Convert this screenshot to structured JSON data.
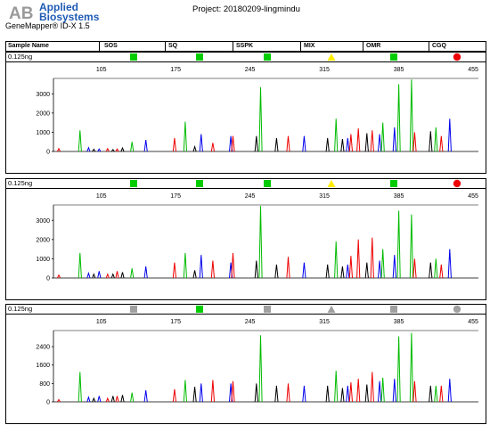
{
  "app": {
    "brand_line1": "Applied",
    "brand_line2": "Biosystems",
    "version": "GeneMapper® ID-X  1.5",
    "project": "Project: 20180209-lingmindu"
  },
  "header": {
    "sample_name": "Sample Name",
    "columns": [
      "SOS",
      "SQ",
      "SSPK",
      "MIX",
      "OMR",
      "CGQ"
    ]
  },
  "colors": {
    "blue": "#0000ee",
    "green": "#00bb00",
    "black": "#000000",
    "red": "#ee0000"
  },
  "panels": [
    {
      "sample_label": "0.125ng",
      "markers": [
        {
          "shape": "square",
          "color": "#00cc00"
        },
        {
          "shape": "square",
          "color": "#00cc00"
        },
        {
          "shape": "square",
          "color": "#00cc00"
        },
        {
          "shape": "triangle",
          "color": "#ffee00"
        },
        {
          "shape": "square",
          "color": "#00cc00"
        },
        {
          "shape": "circle",
          "color": "#ee0000"
        }
      ],
      "x_ticks": [
        "105",
        "175",
        "245",
        "315",
        "385",
        "455"
      ],
      "y_ticks": [
        "0",
        "1000",
        "2000",
        "3000"
      ],
      "ymax": 3800
    },
    {
      "sample_label": "0.125ng",
      "markers": [
        {
          "shape": "square",
          "color": "#00cc00"
        },
        {
          "shape": "square",
          "color": "#00cc00"
        },
        {
          "shape": "square",
          "color": "#00cc00"
        },
        {
          "shape": "triangle",
          "color": "#ffee00"
        },
        {
          "shape": "square",
          "color": "#00cc00"
        },
        {
          "shape": "circle",
          "color": "#ee0000"
        }
      ],
      "x_ticks": [
        "105",
        "175",
        "245",
        "315",
        "385",
        "455"
      ],
      "y_ticks": [
        "0",
        "1000",
        "2000",
        "3000"
      ],
      "ymax": 3800
    },
    {
      "sample_label": "0.125ng",
      "markers": [
        {
          "shape": "square",
          "color": "#a0a0a0"
        },
        {
          "shape": "square",
          "color": "#00cc00"
        },
        {
          "shape": "square",
          "color": "#a0a0a0"
        },
        {
          "shape": "triangle",
          "color": "#a0a0a0"
        },
        {
          "shape": "square",
          "color": "#a0a0a0"
        },
        {
          "shape": "circle",
          "color": "#a0a0a0"
        }
      ],
      "x_ticks": [
        "105",
        "175",
        "245",
        "315",
        "385",
        "455"
      ],
      "y_ticks": [
        "0",
        "800",
        "1600",
        "2400"
      ],
      "ymax": 3100
    }
  ],
  "chart_data": [
    {
      "type": "line",
      "title": "",
      "xlim": [
        60,
        460
      ],
      "ylim": [
        0,
        3800
      ],
      "series": [
        {
          "color": "blue",
          "peaks": [
            [
              93,
              200
            ],
            [
              103,
              130
            ],
            [
              147,
              600
            ],
            [
              199,
              900
            ],
            [
              227,
              800
            ],
            [
              296,
              800
            ],
            [
              337,
              700
            ],
            [
              367,
              900
            ],
            [
              381,
              1250
            ],
            [
              433,
              1700
            ]
          ]
        },
        {
          "color": "green",
          "peaks": [
            [
              85,
              1100
            ],
            [
              134,
              500
            ],
            [
              184,
              1550
            ],
            [
              255,
              3350
            ],
            [
              326,
              1700
            ],
            [
              370,
              1500
            ],
            [
              385,
              3500
            ],
            [
              397,
              3750
            ],
            [
              420,
              1250
            ]
          ]
        },
        {
          "color": "black",
          "peaks": [
            [
              98,
              120
            ],
            [
              116,
              100
            ],
            [
              125,
              180
            ],
            [
              193,
              250
            ],
            [
              251,
              800
            ],
            [
              270,
              700
            ],
            [
              318,
              700
            ],
            [
              332,
              650
            ],
            [
              355,
              950
            ],
            [
              415,
              1050
            ]
          ]
        },
        {
          "color": "red",
          "peaks": [
            [
              65,
              150
            ],
            [
              111,
              150
            ],
            [
              120,
              130
            ],
            [
              174,
              700
            ],
            [
              210,
              450
            ],
            [
              229,
              800
            ],
            [
              281,
              800
            ],
            [
              340,
              900
            ],
            [
              347,
              1200
            ],
            [
              360,
              1100
            ],
            [
              400,
              1000
            ],
            [
              425,
              800
            ]
          ]
        }
      ]
    },
    {
      "type": "line",
      "title": "",
      "xlim": [
        60,
        460
      ],
      "ylim": [
        0,
        3800
      ],
      "series": [
        {
          "color": "blue",
          "peaks": [
            [
              93,
              250
            ],
            [
              103,
              350
            ],
            [
              147,
              600
            ],
            [
              199,
              1200
            ],
            [
              227,
              800
            ],
            [
              296,
              800
            ],
            [
              337,
              700
            ],
            [
              367,
              900
            ],
            [
              381,
              1200
            ],
            [
              433,
              1500
            ]
          ]
        },
        {
          "color": "green",
          "peaks": [
            [
              85,
              1300
            ],
            [
              134,
              500
            ],
            [
              184,
              1300
            ],
            [
              255,
              3750
            ],
            [
              326,
              1900
            ],
            [
              370,
              1500
            ],
            [
              385,
              3500
            ],
            [
              397,
              3300
            ],
            [
              420,
              1000
            ]
          ]
        },
        {
          "color": "black",
          "peaks": [
            [
              98,
              200
            ],
            [
              116,
              200
            ],
            [
              125,
              300
            ],
            [
              193,
              400
            ],
            [
              251,
              900
            ],
            [
              270,
              700
            ],
            [
              318,
              700
            ],
            [
              332,
              600
            ],
            [
              355,
              800
            ],
            [
              415,
              800
            ]
          ]
        },
        {
          "color": "red",
          "peaks": [
            [
              65,
              150
            ],
            [
              111,
              200
            ],
            [
              120,
              350
            ],
            [
              174,
              800
            ],
            [
              210,
              900
            ],
            [
              229,
              1300
            ],
            [
              281,
              1100
            ],
            [
              340,
              1150
            ],
            [
              347,
              2000
            ],
            [
              360,
              2100
            ],
            [
              400,
              1000
            ],
            [
              425,
              700
            ]
          ]
        }
      ]
    },
    {
      "type": "line",
      "title": "",
      "xlim": [
        60,
        460
      ],
      "ylim": [
        0,
        3100
      ],
      "series": [
        {
          "color": "blue",
          "peaks": [
            [
              93,
              200
            ],
            [
              103,
              250
            ],
            [
              147,
              500
            ],
            [
              199,
              800
            ],
            [
              227,
              800
            ],
            [
              296,
              700
            ],
            [
              337,
              700
            ],
            [
              367,
              900
            ],
            [
              381,
              1000
            ],
            [
              433,
              1000
            ]
          ]
        },
        {
          "color": "green",
          "peaks": [
            [
              85,
              1300
            ],
            [
              134,
              400
            ],
            [
              184,
              950
            ],
            [
              255,
              2900
            ],
            [
              326,
              1350
            ],
            [
              370,
              1050
            ],
            [
              385,
              2850
            ],
            [
              397,
              3000
            ],
            [
              420,
              700
            ]
          ]
        },
        {
          "color": "black",
          "peaks": [
            [
              98,
              150
            ],
            [
              116,
              250
            ],
            [
              125,
              300
            ],
            [
              193,
              650
            ],
            [
              251,
              800
            ],
            [
              270,
              700
            ],
            [
              318,
              700
            ],
            [
              332,
              600
            ],
            [
              355,
              750
            ],
            [
              415,
              700
            ]
          ]
        },
        {
          "color": "red",
          "peaks": [
            [
              65,
              100
            ],
            [
              111,
              150
            ],
            [
              120,
              250
            ],
            [
              174,
              550
            ],
            [
              210,
              950
            ],
            [
              229,
              900
            ],
            [
              281,
              800
            ],
            [
              340,
              850
            ],
            [
              347,
              1000
            ],
            [
              360,
              1300
            ],
            [
              400,
              900
            ],
            [
              425,
              700
            ]
          ]
        }
      ]
    }
  ]
}
